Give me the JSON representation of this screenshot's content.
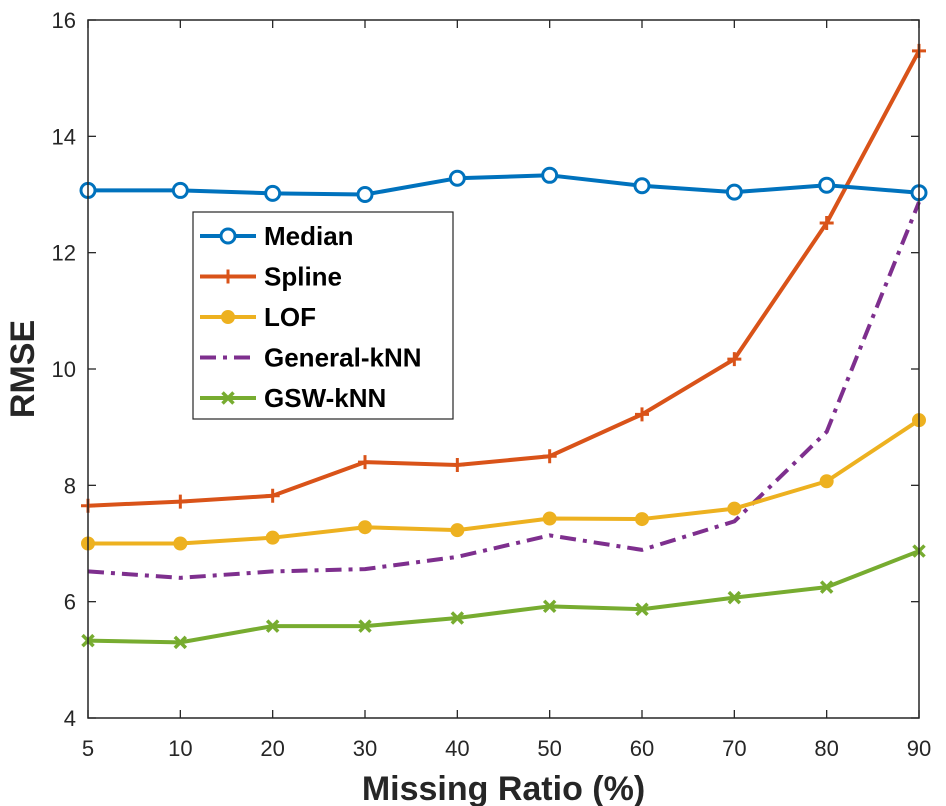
{
  "chart_data": {
    "type": "line",
    "xlabel": "Missing Ratio (%)",
    "ylabel": "RMSE",
    "categories": [
      "5",
      "10",
      "20",
      "30",
      "40",
      "50",
      "60",
      "70",
      "80",
      "90"
    ],
    "yticks": [
      "4",
      "6",
      "8",
      "10",
      "12",
      "14",
      "16"
    ],
    "ylim": [
      4,
      16
    ],
    "grid": false,
    "legend_position": "upper-left",
    "series": [
      {
        "name": "Median",
        "color": "#0072BD",
        "marker": "circle-open",
        "dash": "solid",
        "values": [
          13.07,
          13.07,
          13.02,
          13.0,
          13.28,
          13.33,
          13.15,
          13.04,
          13.16,
          13.03
        ]
      },
      {
        "name": "Spline",
        "color": "#D95319",
        "marker": "plus",
        "dash": "solid",
        "values": [
          7.65,
          7.72,
          7.82,
          8.4,
          8.35,
          8.5,
          9.22,
          10.17,
          12.51,
          15.47
        ]
      },
      {
        "name": "LOF",
        "color": "#EDB120",
        "marker": "circle-filled",
        "dash": "solid",
        "values": [
          7.0,
          7.0,
          7.1,
          7.28,
          7.23,
          7.43,
          7.42,
          7.6,
          8.07,
          9.12
        ]
      },
      {
        "name": "General-kNN",
        "color": "#7E2F8E",
        "marker": "none",
        "dash": "dashdot",
        "values": [
          6.52,
          6.41,
          6.52,
          6.56,
          6.77,
          7.14,
          6.89,
          7.38,
          8.92,
          12.87
        ]
      },
      {
        "name": "GSW-kNN",
        "color": "#77AC30",
        "marker": "x",
        "dash": "solid",
        "values": [
          5.33,
          5.3,
          5.58,
          5.58,
          5.72,
          5.92,
          5.87,
          6.07,
          6.25,
          6.87
        ]
      }
    ]
  }
}
